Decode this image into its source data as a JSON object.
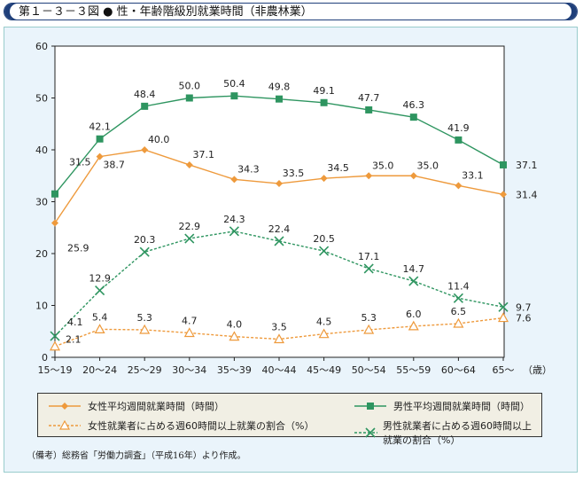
{
  "title": "第１－３－３図 ● 性・年齢階級別就業時間（非農林業）",
  "chart_data": {
    "type": "line",
    "categories": [
      "15～19",
      "20～24",
      "25～29",
      "30～34",
      "35～39",
      "40～44",
      "45～49",
      "50～54",
      "55～59",
      "60～64",
      "65～"
    ],
    "x_unit": "（歳）",
    "ylim": [
      0,
      60
    ],
    "yticks": [
      0,
      10,
      20,
      30,
      40,
      50,
      60
    ],
    "grid": false,
    "legend_placement": "bottom",
    "series": [
      {
        "name": "女性平均週間就業時間（時間）",
        "color": "#ee9a3c",
        "marker": "diamond",
        "dash": false,
        "values": [
          25.9,
          38.7,
          40.0,
          37.1,
          34.3,
          33.5,
          34.5,
          35.0,
          35.0,
          33.1,
          31.4
        ]
      },
      {
        "name": "男性平均週間就業時間（時間）",
        "color": "#2e9560",
        "marker": "square",
        "dash": false,
        "values": [
          31.5,
          42.1,
          48.4,
          50.0,
          50.4,
          49.8,
          49.1,
          47.7,
          46.3,
          41.9,
          37.1
        ]
      },
      {
        "name": "女性就業者に占める週60時間以上就業の割合（%）",
        "color": "#ee9a3c",
        "marker": "triangle",
        "dash": true,
        "values": [
          2.1,
          5.4,
          5.3,
          4.7,
          4.0,
          3.5,
          4.5,
          5.3,
          6.0,
          6.5,
          7.6
        ]
      },
      {
        "name": "男性就業者に占める週60時間以上就業の割合（%）",
        "color": "#2e9560",
        "marker": "x",
        "dash": true,
        "values": [
          4.1,
          12.9,
          20.3,
          22.9,
          24.3,
          22.4,
          20.5,
          17.1,
          14.7,
          11.4,
          9.7
        ]
      }
    ]
  },
  "note": "（備考）総務省「労働力調査」（平成16年）より作成。"
}
